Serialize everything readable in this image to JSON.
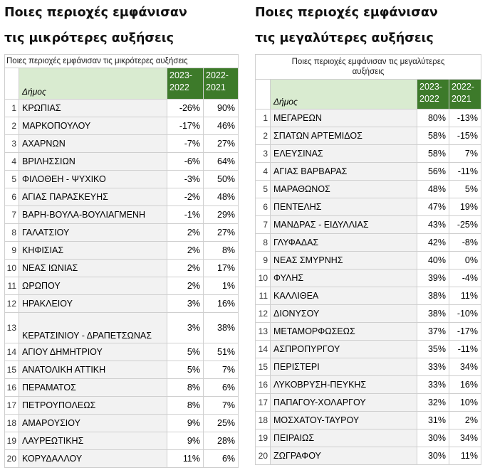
{
  "left": {
    "heading_line1": "Ποιες περιοχές εμφάνισαν",
    "heading_line2": "τις μικρότερες αυξήσεις",
    "caption": "Ποιες περιοχές εμφάνισαν τις μικρότερες αυξήσεις",
    "col_label": "Δήμος",
    "col_a": "2023-2022",
    "col_b": "2022-2021",
    "rows": [
      {
        "n": "1",
        "name": "ΚΡΩΠΙΑΣ",
        "a": "-26%",
        "b": "90%"
      },
      {
        "n": "2",
        "name": "ΜΑΡΚΟΠΟΥΛΟΥ",
        "a": "-17%",
        "b": "46%"
      },
      {
        "n": "3",
        "name": "ΑΧΑΡΝΩΝ",
        "a": "-7%",
        "b": "27%"
      },
      {
        "n": "4",
        "name": "ΒΡΙΛΗΣΣΙΩΝ",
        "a": "-6%",
        "b": "64%"
      },
      {
        "n": "5",
        "name": "ΦΙΛΟΘΕΗ - ΨΥΧΙΚΟ",
        "a": "-3%",
        "b": "50%"
      },
      {
        "n": "6",
        "name": "ΑΓΙΑΣ ΠΑΡΑΣΚΕΥΗΣ",
        "a": "-2%",
        "b": "48%"
      },
      {
        "n": "7",
        "name": "ΒΑΡΗ-ΒΟΥΛΑ-ΒΟΥΛΙΑΓΜΕΝΗ",
        "a": "-1%",
        "b": "29%"
      },
      {
        "n": "8",
        "name": "ΓΑΛΑΤΣΙΟΥ",
        "a": "2%",
        "b": "27%"
      },
      {
        "n": "9",
        "name": "ΚΗΦΙΣΙΑΣ",
        "a": "2%",
        "b": "8%"
      },
      {
        "n": "10",
        "name": "ΝΕΑΣ ΙΩΝΙΑΣ",
        "a": "2%",
        "b": "17%"
      },
      {
        "n": "11",
        "name": "ΩΡΩΠΟΥ",
        "a": "2%",
        "b": "1%"
      },
      {
        "n": "12",
        "name": "ΗΡΑΚΛΕΙΟΥ",
        "a": "3%",
        "b": "16%"
      },
      {
        "n": "13",
        "name": "ΚΕΡΑΤΣΙΝΙΟΥ - ΔΡΑΠΕΤΣΩΝΑΣ",
        "a": "3%",
        "b": "38%"
      },
      {
        "n": "14",
        "name": "ΑΓΙΟΥ ΔΗΜΗΤΡΙΟΥ",
        "a": "5%",
        "b": "51%"
      },
      {
        "n": "15",
        "name": "ΑΝΑΤΟΛΙΚΗ ΑΤΤΙΚΗ",
        "a": "5%",
        "b": "7%"
      },
      {
        "n": "16",
        "name": "ΠΕΡΑΜΑΤΟΣ",
        "a": "8%",
        "b": "6%"
      },
      {
        "n": "17",
        "name": "ΠΕΤΡΟΥΠΟΛΕΩΣ",
        "a": "8%",
        "b": "7%"
      },
      {
        "n": "18",
        "name": "ΑΜΑΡΟΥΣΙΟΥ",
        "a": "9%",
        "b": "25%"
      },
      {
        "n": "19",
        "name": "ΛΑΥΡΕΩΤΙΚΗΣ",
        "a": "9%",
        "b": "28%"
      },
      {
        "n": "20",
        "name": "ΚΟΡΥΔΑΛΛΟΥ",
        "a": "11%",
        "b": "6%"
      }
    ]
  },
  "right": {
    "heading_line1": "Ποιες περιοχές εμφάνισαν",
    "heading_line2": "τις μεγαλύτερες αυξήσεις",
    "caption": "Ποιες περιοχές εμφάνισαν τις μεγαλύτερες αυξήσεις",
    "col_label": "Δήμος",
    "col_a": "2023-2022",
    "col_b": "2022-2021",
    "rows": [
      {
        "n": "1",
        "name": "ΜΕΓΑΡΕΩΝ",
        "a": "80%",
        "b": "-13%"
      },
      {
        "n": "2",
        "name": "ΣΠΑΤΩΝ ΑΡΤΕΜΙΔΟΣ",
        "a": "58%",
        "b": "-15%"
      },
      {
        "n": "3",
        "name": "ΕΛΕΥΣΙΝΑΣ",
        "a": "58%",
        "b": "7%"
      },
      {
        "n": "4",
        "name": "ΑΓΙΑΣ ΒΑΡΒΑΡΑΣ",
        "a": "56%",
        "b": "-11%"
      },
      {
        "n": "5",
        "name": "ΜΑΡΑΘΩΝΟΣ",
        "a": "48%",
        "b": "5%"
      },
      {
        "n": "6",
        "name": "ΠΕΝΤΕΛΗΣ",
        "a": "47%",
        "b": "19%"
      },
      {
        "n": "7",
        "name": "ΜΑΝΔΡΑΣ - ΕΙΔΥΛΛΙΑΣ",
        "a": "43%",
        "b": "-25%"
      },
      {
        "n": "8",
        "name": "ΓΛΥΦΑΔΑΣ",
        "a": "42%",
        "b": "-8%"
      },
      {
        "n": "9",
        "name": "ΝΕΑΣ ΣΜΥΡΝΗΣ",
        "a": "40%",
        "b": "0%"
      },
      {
        "n": "10",
        "name": "ΦΥΛΗΣ",
        "a": "39%",
        "b": "-4%"
      },
      {
        "n": "11",
        "name": "ΚΑΛΛΙΘΕΑ",
        "a": "38%",
        "b": "11%"
      },
      {
        "n": "12",
        "name": "ΔΙΟΝΥΣΟΥ",
        "a": "38%",
        "b": "-10%"
      },
      {
        "n": "13",
        "name": "ΜΕΤΑΜΟΡΦΩΣΕΩΣ",
        "a": "37%",
        "b": "-17%"
      },
      {
        "n": "14",
        "name": "ΑΣΠΡΟΠΥΡΓΟΥ",
        "a": "35%",
        "b": "-11%"
      },
      {
        "n": "15",
        "name": "ΠΕΡΙΣΤΕΡΙ",
        "a": "33%",
        "b": "34%"
      },
      {
        "n": "16",
        "name": "ΛΥΚΟΒΡΥΣΗ-ΠΕΥΚΗΣ",
        "a": "33%",
        "b": "16%"
      },
      {
        "n": "17",
        "name": "ΠΑΠΑΓΟΥ-ΧΟΛΑΡΓΟΥ",
        "a": "32%",
        "b": "10%"
      },
      {
        "n": "18",
        "name": "ΜΟΣΧΑΤΟΥ-ΤΑΥΡΟΥ",
        "a": "31%",
        "b": "2%"
      },
      {
        "n": "19",
        "name": "ΠΕΙΡΑΙΩΣ",
        "a": "30%",
        "b": "34%"
      },
      {
        "n": "20",
        "name": "ΖΩΓΡΑΦΟΥ",
        "a": "30%",
        "b": "11%"
      }
    ]
  }
}
